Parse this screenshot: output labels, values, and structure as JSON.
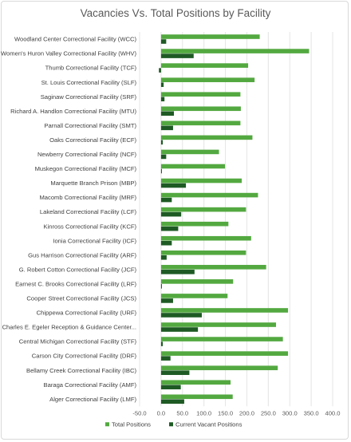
{
  "chart_data": {
    "type": "bar",
    "orientation": "horizontal",
    "title": "Vacancies Vs. Total Positions by Facility",
    "xlim": [
      -50,
      400
    ],
    "xticks": [
      "-50.0",
      "0.0",
      "50.0",
      "100.0",
      "150.0",
      "200.0",
      "250.0",
      "300.0",
      "350.0",
      "400.0"
    ],
    "grid": true,
    "legend_position": "bottom",
    "colors": {
      "total": "#53a940",
      "vacant": "#1e5a24"
    },
    "categories": [
      "Woodland Center Correctional Facility (WCC)",
      "Women's Huron Valley Correctional Facility (WHV)",
      "Thumb Correctional Facility (TCF)",
      "St. Louis Correctional Facility (SLF)",
      "Saginaw Correctional Facility (SRF)",
      "Richard A. Handlon Correctional Facility (MTU)",
      "Parnall Correctional Facility (SMT)",
      "Oaks Correctional Facility (ECF)",
      "Newberry Correctional Facility (NCF)",
      "Muskegon Correctional Facility (MCF)",
      "Marquette Branch Prison (MBP)",
      "Macomb Correctional Facility (MRF)",
      "Lakeland Correctional Facility (LCF)",
      "Kinross Correctional Facility (KCF)",
      "Ionia Correctional Facility (ICF)",
      "Gus Harrison Correctional Facility (ARF)",
      "G. Robert Cotton Correctional Facility (JCF)",
      "Earnest C. Brooks Correctional Facility (LRF)",
      "Cooper Street Correctional Facility (JCS)",
      "Chippewa Correctional Facility (URF)",
      "Charles E. Egeler Reception & Guidance Center...",
      "Central Michigan Correctional Facility (STF)",
      "Carson City Correctional Facility (DRF)",
      "Bellamy Creek Correctional Facility (IBC)",
      "Baraga Correctional Facility (AMF)",
      "Alger Correctional Facility (LMF)"
    ],
    "series": [
      {
        "name": "Total Positions",
        "values": [
          230,
          345,
          203,
          218,
          185,
          186,
          185,
          213,
          135,
          149,
          188,
          226,
          198,
          157,
          210,
          198,
          245,
          168,
          155,
          296,
          268,
          284,
          296,
          272,
          162,
          167
        ]
      },
      {
        "name": "Current Vacant Positions",
        "values": [
          12,
          76,
          -5,
          6,
          8,
          30,
          28,
          4,
          12,
          2,
          58,
          25,
          47,
          40,
          25,
          13,
          78,
          2,
          28,
          95,
          86,
          4,
          22,
          66,
          46,
          54
        ]
      }
    ]
  }
}
